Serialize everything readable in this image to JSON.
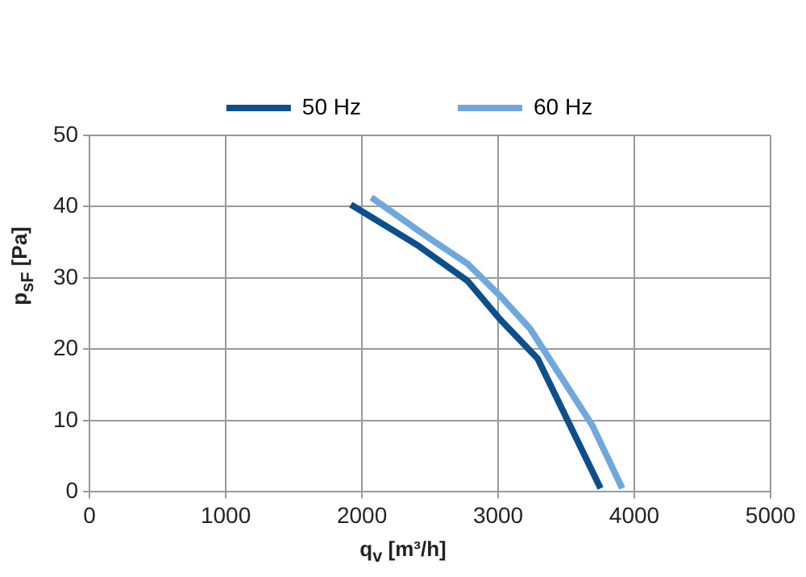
{
  "chart_data": {
    "type": "line",
    "xlabel": "q$_{v}$ [m³/h]",
    "ylabel": "p$_{sF}$ [Pa]",
    "xlim": [
      0,
      5000
    ],
    "xticks": [
      0,
      1000,
      2000,
      3000,
      4000,
      5000
    ],
    "ylim": [
      0,
      50
    ],
    "yticks": [
      0,
      10,
      20,
      30,
      40,
      50
    ],
    "grid": true,
    "legend": "top",
    "marker": "none",
    "line_style": "solid",
    "series": [
      {
        "name": "50 Hz",
        "color": "#0d4f8b",
        "x": [
          1918,
          2416,
          2775,
          3014,
          3290,
          3752
        ],
        "values": [
          40.3,
          34.5,
          29.6,
          24.2,
          18.7,
          0.5
        ]
      },
      {
        "name": "60 Hz",
        "color": "#6fa8dc",
        "x": [
          2069,
          2500,
          2775,
          3014,
          3234,
          3692,
          3911
        ],
        "values": [
          41.3,
          35.5,
          32,
          27.5,
          22.9,
          9.3,
          0.5
        ]
      }
    ]
  }
}
